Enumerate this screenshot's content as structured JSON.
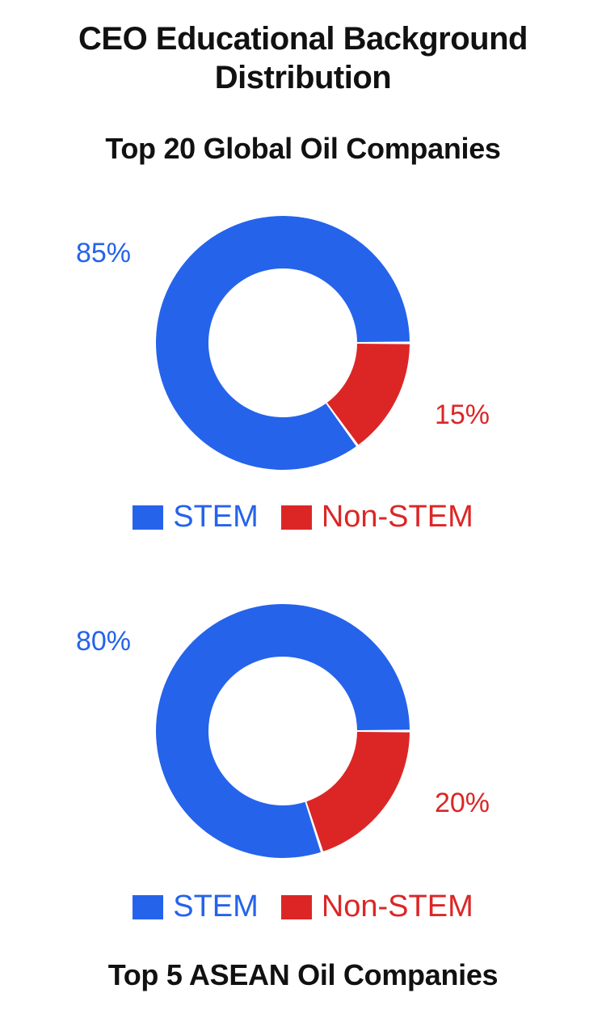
{
  "main_title": "CEO Educational Background Distribution",
  "colors": {
    "stem": "#2563eb",
    "non_stem": "#dc2626"
  },
  "chart_data": [
    {
      "type": "pie",
      "variant": "donut",
      "title": "Top 20 Global Oil Companies",
      "categories": [
        "STEM",
        "Non-STEM"
      ],
      "values": [
        85,
        15
      ],
      "labels": [
        "85%",
        "15%"
      ],
      "legend": [
        "STEM",
        "Non-STEM"
      ],
      "legend_position": "bottom"
    },
    {
      "type": "pie",
      "variant": "donut",
      "title": "Top 5 ASEAN Oil Companies",
      "categories": [
        "STEM",
        "Non-STEM"
      ],
      "values": [
        80,
        20
      ],
      "labels": [
        "80%",
        "20%"
      ],
      "legend": [
        "STEM",
        "Non-STEM"
      ],
      "legend_position": "bottom"
    }
  ]
}
